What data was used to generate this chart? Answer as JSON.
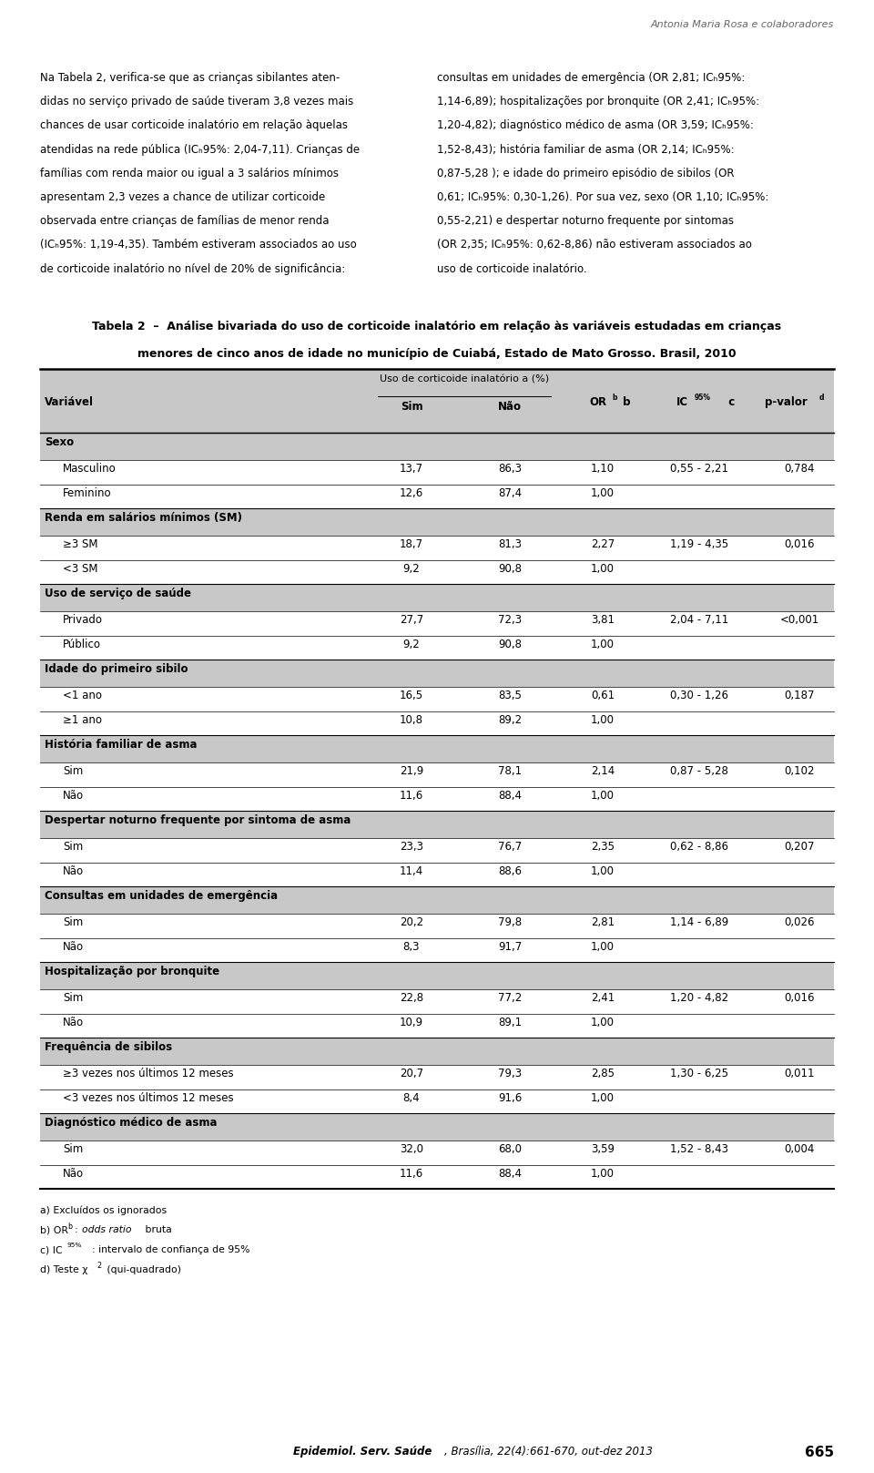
{
  "header_author": "Antonia Maria Rosa e colaboradores",
  "intro_left": "Na Tabela 2, verifica-se que as crianças sibilantes aten-\ndidas no serviço privado de saúde tiveram 3,8 vezes mais\nchances de usar corticoide inalatório em relação àquelas\natendidas na rede pública (ICₕ95%: 2,04-7,11). Crianças de\nfamílias com renda maior ou igual a 3 salários mínimos\napresentam 2,3 vezes a chance de utilizar corticoide\nobservada entre crianças de famílias de menor renda\n(ICₕ95%: 1,19-4,35). Também estiveram associados ao uso\nde corticoide inalatório no nível de 20% de significância:",
  "intro_right": "consultas em unidades de emergência (OR 2,81; ICₕ95%:\n1,14-6,89); hospitalizações por bronquite (OR 2,41; ICₕ95%:\n1,20-4,82); diagnóstico médico de asma (OR 3,59; ICₕ95%:\n1,52-8,43); história familiar de asma (OR 2,14; ICₕ95%:\n0,87-5,28 ); e idade do primeiro episódio de sibilos (OR\n0,61; ICₕ95%: 0,30-1,26). Por sua vez, sexo (OR 1,10; ICₕ95%:\n0,55-2,21) e despertar noturno frequente por sintomas\n(OR 2,35; ICₕ95%: 0,62-8,86) não estiveram associados ao\nuso de corticoide inalatório.",
  "table_title_1": "Tabela 2  –  Análise bivariada do uso de corticoide inalatório em relação às variáveis estudadas em crianças",
  "table_title_2": "menores de cinco anos de idade no município de Cuiabá, Estado de Mato Grosso. Brasil, 2010",
  "sections": [
    {
      "section": "Sexo",
      "rows": [
        {
          "label": "Masculino",
          "sim": "13,7",
          "nao": "86,3",
          "or": "1,10",
          "ic": "0,55 - 2,21",
          "pval": "0,784"
        },
        {
          "label": "Feminino",
          "sim": "12,6",
          "nao": "87,4",
          "or": "1,00",
          "ic": "",
          "pval": ""
        }
      ]
    },
    {
      "section": "Renda em salários mínimos (SM)",
      "rows": [
        {
          "label": "≥3 SM",
          "sim": "18,7",
          "nao": "81,3",
          "or": "2,27",
          "ic": "1,19 - 4,35",
          "pval": "0,016"
        },
        {
          "label": "<3 SM",
          "sim": "9,2",
          "nao": "90,8",
          "or": "1,00",
          "ic": "",
          "pval": ""
        }
      ]
    },
    {
      "section": "Uso de serviço de saúde",
      "rows": [
        {
          "label": "Privado",
          "sim": "27,7",
          "nao": "72,3",
          "or": "3,81",
          "ic": "2,04 - 7,11",
          "pval": "<0,001"
        },
        {
          "label": "Público",
          "sim": "9,2",
          "nao": "90,8",
          "or": "1,00",
          "ic": "",
          "pval": ""
        }
      ]
    },
    {
      "section": "Idade do primeiro sibilo",
      "rows": [
        {
          "label": "<1 ano",
          "sim": "16,5",
          "nao": "83,5",
          "or": "0,61",
          "ic": "0,30 - 1,26",
          "pval": "0,187"
        },
        {
          "label": "≥1 ano",
          "sim": "10,8",
          "nao": "89,2",
          "or": "1,00",
          "ic": "",
          "pval": ""
        }
      ]
    },
    {
      "section": "História familiar de asma",
      "rows": [
        {
          "label": "Sim",
          "sim": "21,9",
          "nao": "78,1",
          "or": "2,14",
          "ic": "0,87 - 5,28",
          "pval": "0,102"
        },
        {
          "label": "Não",
          "sim": "11,6",
          "nao": "88,4",
          "or": "1,00",
          "ic": "",
          "pval": ""
        }
      ]
    },
    {
      "section": "Despertar noturno frequente por sintoma de asma",
      "rows": [
        {
          "label": "Sim",
          "sim": "23,3",
          "nao": "76,7",
          "or": "2,35",
          "ic": "0,62 - 8,86",
          "pval": "0,207"
        },
        {
          "label": "Não",
          "sim": "11,4",
          "nao": "88,6",
          "or": "1,00",
          "ic": "",
          "pval": ""
        }
      ]
    },
    {
      "section": "Consultas em unidades de emergência",
      "rows": [
        {
          "label": "Sim",
          "sim": "20,2",
          "nao": "79,8",
          "or": "2,81",
          "ic": "1,14 - 6,89",
          "pval": "0,026"
        },
        {
          "label": "Não",
          "sim": "8,3",
          "nao": "91,7",
          "or": "1,00",
          "ic": "",
          "pval": ""
        }
      ]
    },
    {
      "section": "Hospitalização por bronquite",
      "rows": [
        {
          "label": "Sim",
          "sim": "22,8",
          "nao": "77,2",
          "or": "2,41",
          "ic": "1,20 - 4,82",
          "pval": "0,016"
        },
        {
          "label": "Não",
          "sim": "10,9",
          "nao": "89,1",
          "or": "1,00",
          "ic": "",
          "pval": ""
        }
      ]
    },
    {
      "section": "Frequência de sibilos",
      "rows": [
        {
          "label": "≥3 vezes nos últimos 12 meses",
          "sim": "20,7",
          "nao": "79,3",
          "or": "2,85",
          "ic": "1,30 - 6,25",
          "pval": "0,011"
        },
        {
          "label": "<3 vezes nos últimos 12 meses",
          "sim": "8,4",
          "nao": "91,6",
          "or": "1,00",
          "ic": "",
          "pval": ""
        }
      ]
    },
    {
      "section": "Diagnóstico médico de asma",
      "rows": [
        {
          "label": "Sim",
          "sim": "32,0",
          "nao": "68,0",
          "or": "3,59",
          "ic": "1,52 - 8,43",
          "pval": "0,004"
        },
        {
          "label": "Não",
          "sim": "11,6",
          "nao": "88,4",
          "or": "1,00",
          "ic": "",
          "pval": ""
        }
      ]
    }
  ],
  "footer_journal_bold": "Epidemiol. Serv. Saúde",
  "footer_rest": ", Brasília, 22(4):661-670, out-dez 2013",
  "footer_page": "665",
  "bg_color": "#ffffff",
  "section_bg": "#c8c8c8",
  "header_bg": "#c8c8c8"
}
